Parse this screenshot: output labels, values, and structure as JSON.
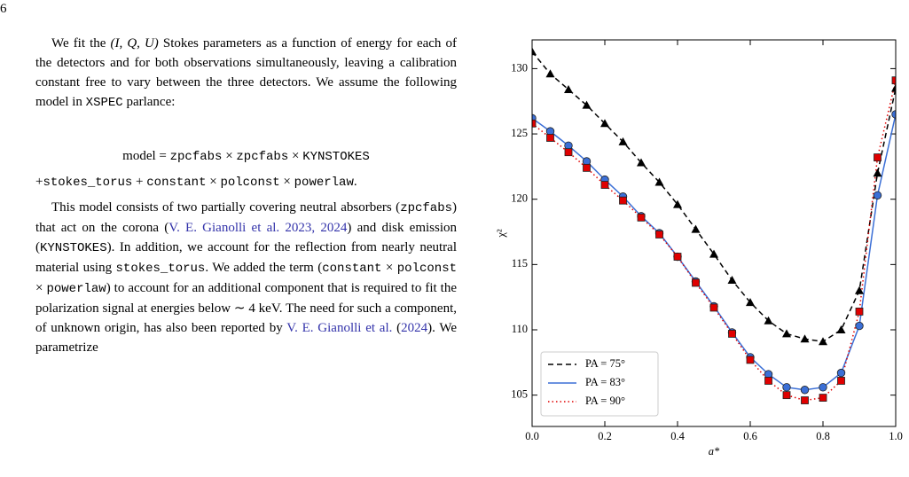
{
  "page_number": "6",
  "paragraph_1": [
    "We fit the ",
    "(I, Q, U)",
    " Stokes parameters as a function of energy for each of the detectors and for both observations simultaneously, leaving a calibration constant free to vary between the three detectors. We assume the following model in ",
    "XSPEC",
    " parlance:"
  ],
  "equation_line_1": [
    "model = ",
    "zpcfabs",
    " × ",
    "zpcfabs",
    " × ",
    "KYNSTOKES"
  ],
  "equation_line_2": [
    "+",
    "stokes_torus",
    " + ",
    "constant",
    " × ",
    "polconst",
    " × ",
    "powerlaw",
    "."
  ],
  "paragraph_2": [
    "This model consists of two partially covering neutral absorbers (",
    "zpcfabs",
    ") that act on the corona (",
    "V. E. Gianolli et al. 2023, 2024",
    ") and disk emission (",
    "KYNSTOKES",
    "). In addition, we account for the reflection from nearly neutral material using ",
    "stokes_torus",
    ". We added the term (",
    "constant",
    " × ",
    "polconst",
    " × ",
    "powerlaw",
    ") to account for an additional component that is required to fit the polarization signal at energies below ∼ 4 keV. The need for such a component, of unknown origin, has also been reported by ",
    "V. E. Gianolli et al.",
    " (",
    "2024",
    "). We parametrize"
  ],
  "chart_data": {
    "type": "line",
    "x_label": "a*",
    "y_label": "χ²",
    "x": [
      0,
      0.05,
      0.1,
      0.15,
      0.2,
      0.25,
      0.3,
      0.35,
      0.4,
      0.45,
      0.5,
      0.55,
      0.6,
      0.65,
      0.7,
      0.75,
      0.8,
      0.85,
      0.9,
      0.95,
      1.0
    ],
    "series": [
      {
        "name": "PA = 75°",
        "color": "#000000",
        "dash": "dashed",
        "marker": "triangle",
        "values": [
          131.3,
          129.6,
          128.4,
          127.2,
          125.8,
          124.4,
          122.8,
          121.3,
          119.6,
          117.7,
          115.8,
          113.8,
          112.1,
          110.7,
          109.7,
          109.3,
          109.1,
          110.0,
          113.0,
          122.0,
          128.5
        ]
      },
      {
        "name": "PA = 83°",
        "color": "#3b6fd6",
        "dash": "solid",
        "marker": "circle",
        "values": [
          126.2,
          125.2,
          124.1,
          122.9,
          121.5,
          120.2,
          118.7,
          117.4,
          115.6,
          113.7,
          111.8,
          109.8,
          107.9,
          106.6,
          105.6,
          105.4,
          105.6,
          106.7,
          110.3,
          120.3,
          126.5
        ]
      },
      {
        "name": "PA = 90°",
        "color": "#e00000",
        "dash": "dotted",
        "marker": "square",
        "values": [
          125.8,
          124.7,
          123.6,
          122.4,
          121.1,
          119.9,
          118.6,
          117.3,
          115.6,
          113.6,
          111.7,
          109.7,
          107.7,
          106.1,
          105.0,
          104.6,
          104.8,
          106.1,
          111.4,
          123.2,
          129.1
        ]
      }
    ],
    "xlim": [
      0,
      1
    ],
    "ylim": [
      102.6,
      132.2
    ],
    "xticks": [
      {
        "value": 0,
        "label": "0.0"
      },
      0.2,
      0.4,
      0.6,
      0.8,
      {
        "value": 1,
        "label": "1.0"
      }
    ],
    "yticks": [
      105,
      110,
      115,
      120,
      125,
      130
    ],
    "legend": "lower left"
  }
}
